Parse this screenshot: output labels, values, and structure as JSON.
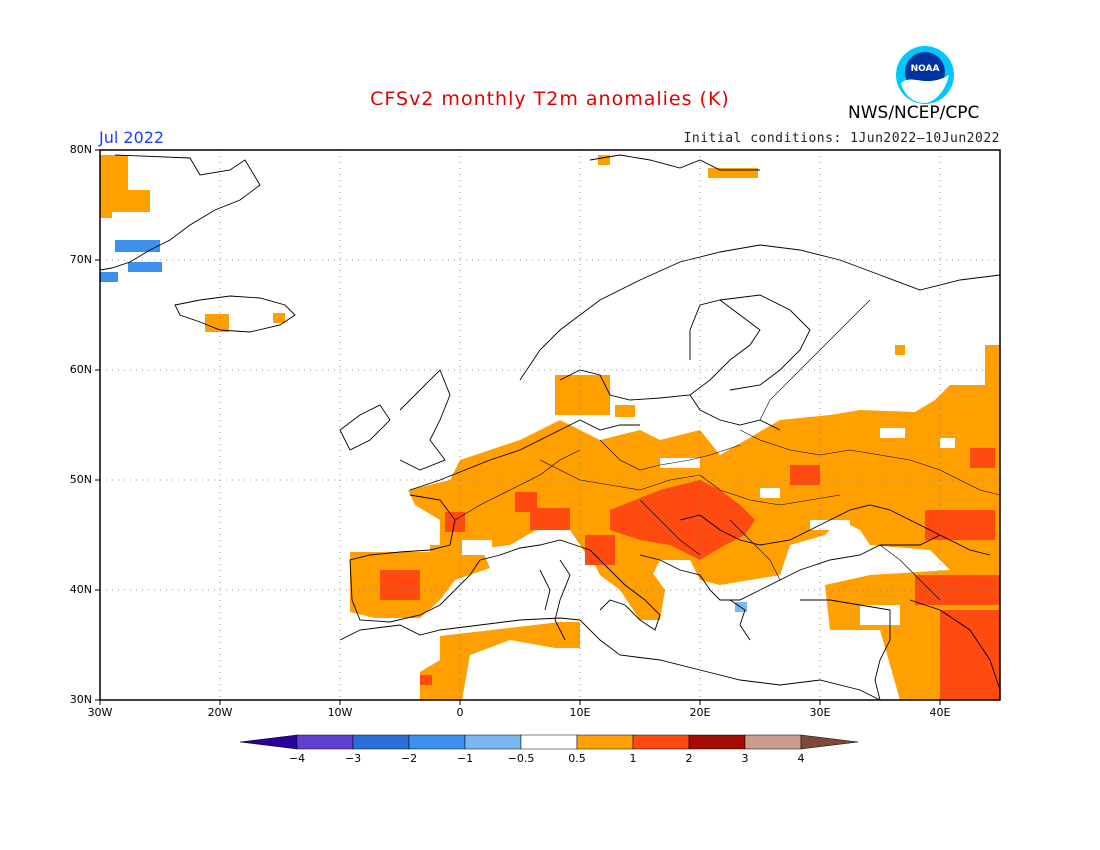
{
  "title": "CFSv2 monthly T2m anomalies (K)",
  "month": "Jul 2022",
  "initial_conditions": "Initial conditions: 1Jun2022–10Jun2022",
  "organization": "NWS/NCEP/CPC",
  "logo_text": "NOAA",
  "map": {
    "lon_range": [
      -30,
      45
    ],
    "lat_range": [
      30,
      80
    ],
    "lat_ticks": [
      "80N",
      "70N",
      "60N",
      "50N",
      "40N",
      "30N"
    ],
    "lon_ticks": [
      "30W",
      "20W",
      "10W",
      "0",
      "10E",
      "20E",
      "30E",
      "40E"
    ],
    "grid": "dotted"
  },
  "colorbar": {
    "labels": [
      "−4",
      "−3",
      "−2",
      "−1",
      "−0.5",
      "0.5",
      "1",
      "2",
      "3",
      "4"
    ],
    "colors": [
      "#2a00a0",
      "#5f3fd0",
      "#2a6fd8",
      "#3d90ee",
      "#7ab6f2",
      "#ffffff",
      "#ff9f00",
      "#ff4a10",
      "#a30c00",
      "#c99c8e",
      "#7d4a3a"
    ]
  },
  "anomaly_colors": {
    "warm1": "#ff9f00",
    "warm2": "#ff4a10",
    "cool1": "#3d90ee",
    "cool2": "#7ab6f2"
  }
}
